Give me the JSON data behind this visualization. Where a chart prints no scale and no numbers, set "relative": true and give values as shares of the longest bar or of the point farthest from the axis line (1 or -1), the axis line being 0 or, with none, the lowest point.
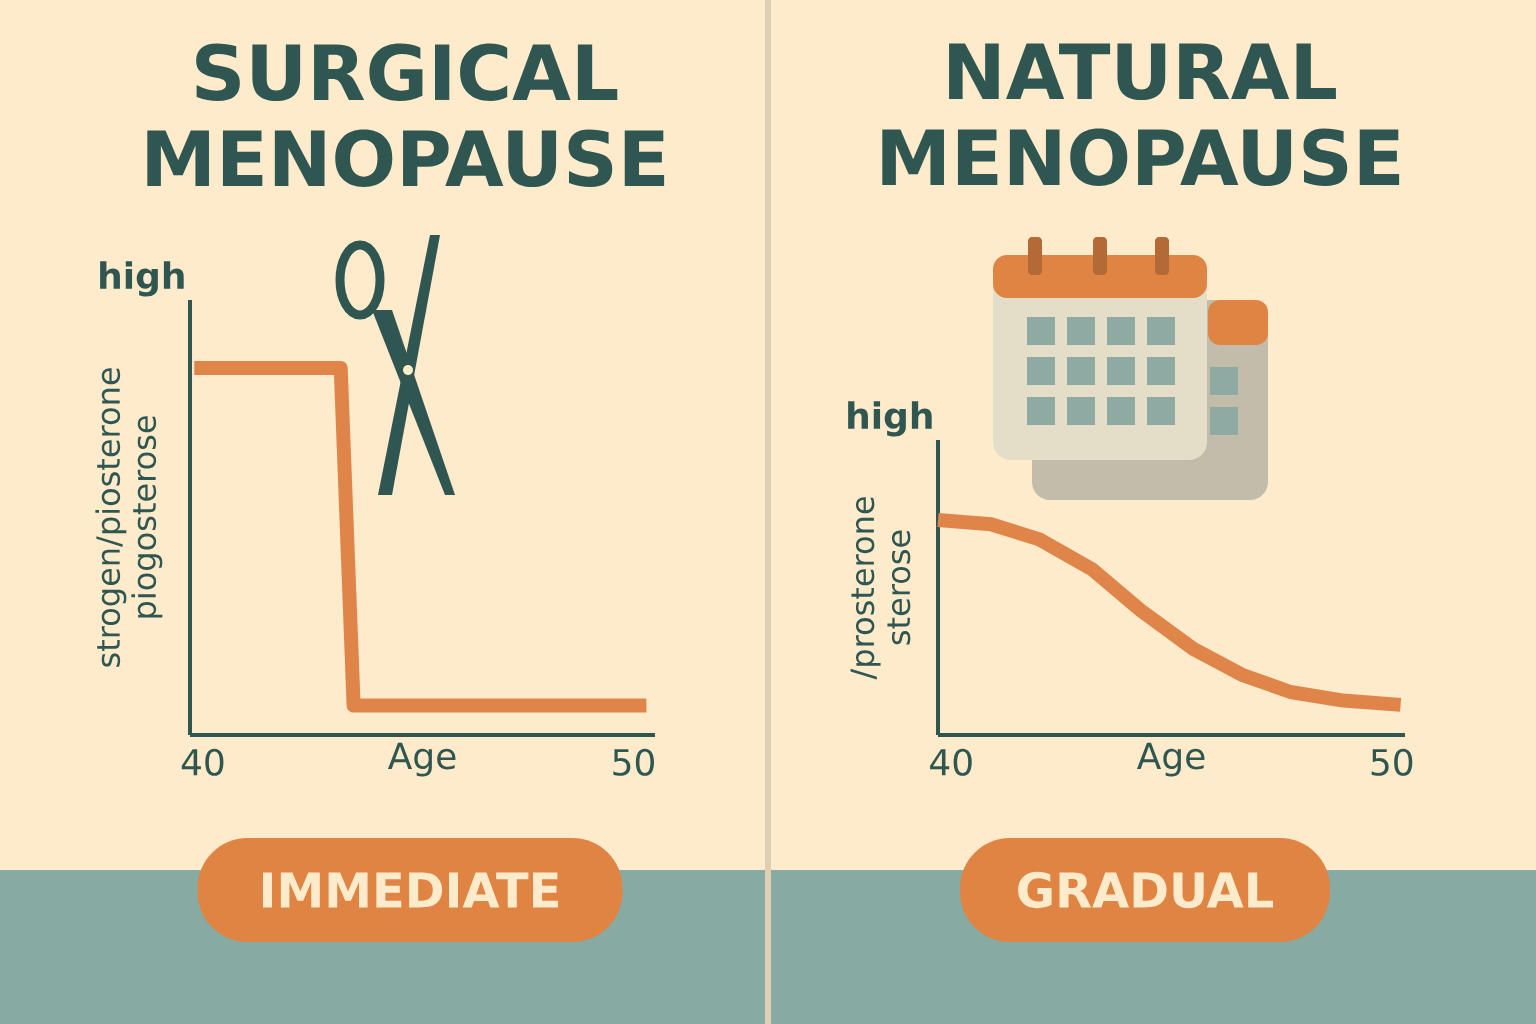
{
  "chart_data": [
    {
      "type": "line",
      "title": "SURGICAL MENOPAUSE",
      "xlabel": "Age",
      "ylabel": "strogen/piosterone piogosterose",
      "relative": true,
      "x": [
        39.8,
        43.2,
        43.5,
        50.3
      ],
      "values": [
        1,
        1,
        0.08,
        0.08
      ],
      "color": "#e0854a",
      "xlim": [
        39.7,
        50.5
      ],
      "xticks": [
        40,
        50
      ],
      "annotations": [
        "high",
        "IMMEDIATE"
      ]
    },
    {
      "type": "line",
      "title": "NATURAL MENOPAUSE",
      "xlabel": "Age",
      "ylabel": "/prosterone sterose",
      "relative": true,
      "x": [
        39.7,
        40.9,
        42.0,
        43.2,
        44.3,
        45.5,
        46.6,
        47.7,
        48.9,
        50.2
      ],
      "values": [
        1,
        0.98,
        0.91,
        0.77,
        0.58,
        0.4,
        0.28,
        0.2,
        0.16,
        0.14
      ],
      "color": "#e0854a",
      "xlim": [
        39.7,
        50.3
      ],
      "xticks": [
        40,
        50
      ],
      "annotations": [
        "high",
        "GRADUAL"
      ]
    }
  ]
}
